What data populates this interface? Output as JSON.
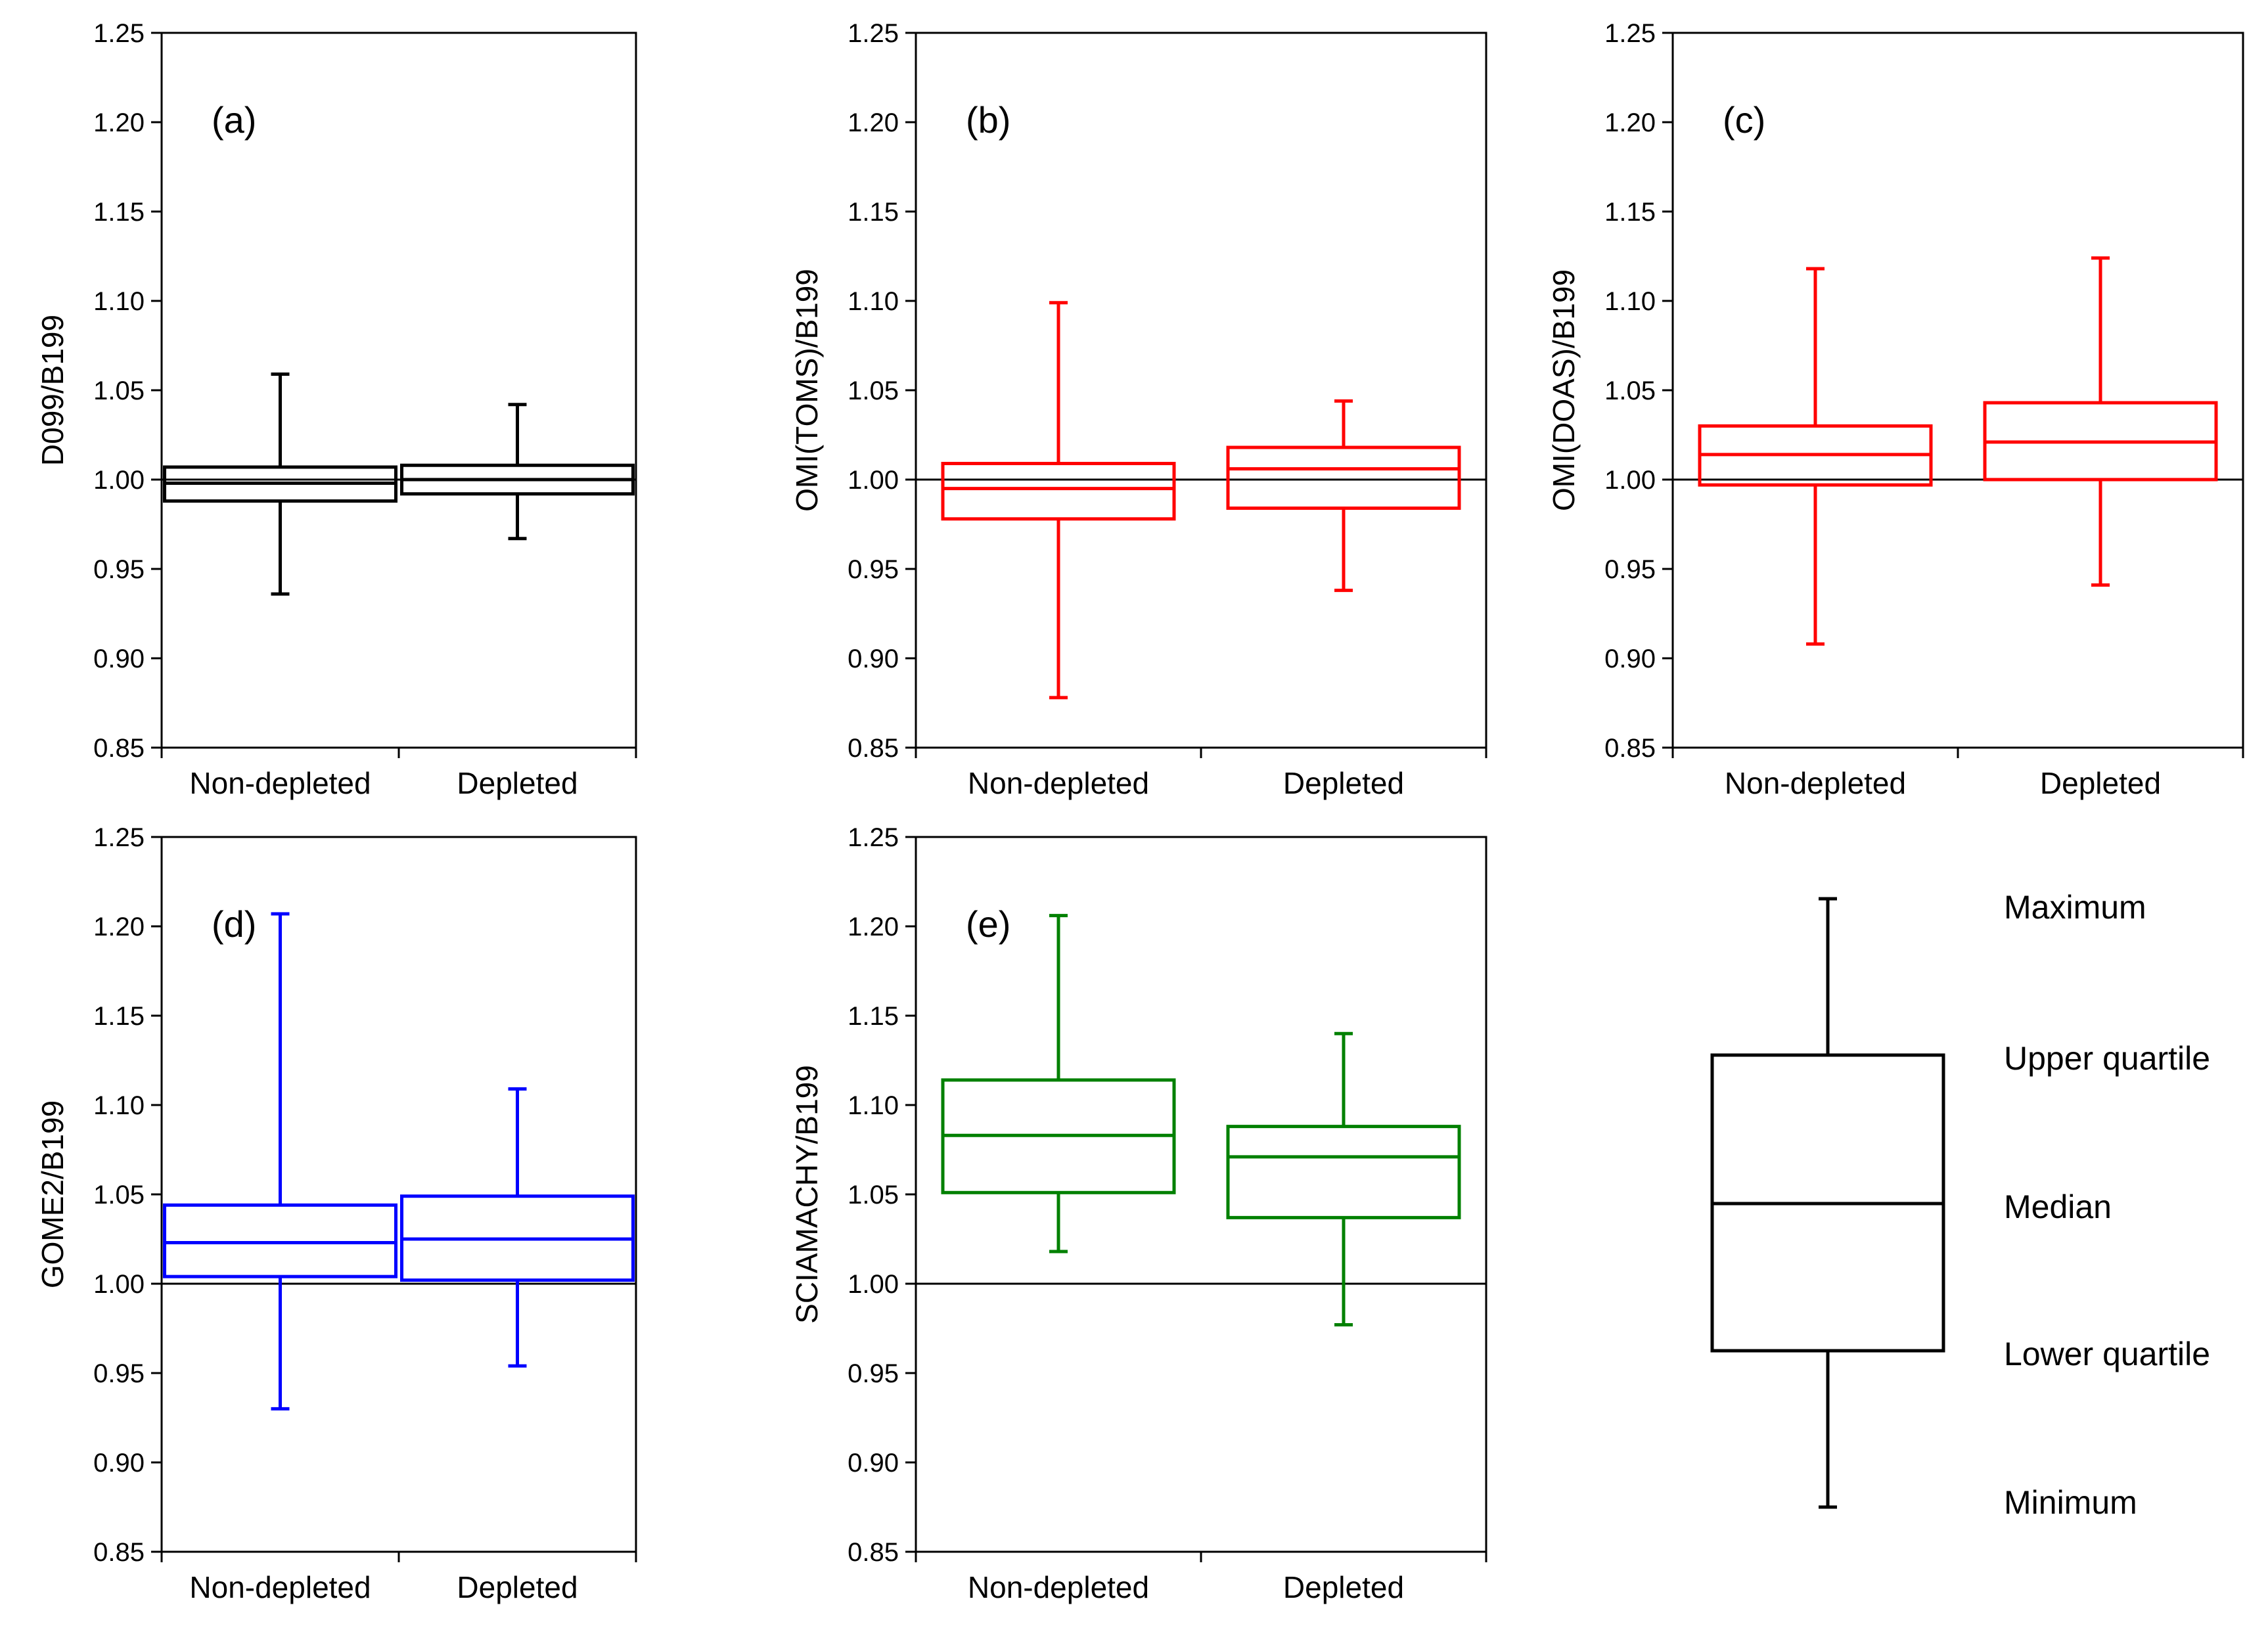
{
  "chart_data": [
    {
      "type": "box",
      "panel_label": "(a)",
      "ylabel": "D099/B199",
      "color": "#000000",
      "ylim": [
        0.85,
        1.25
      ],
      "yticks": [
        "0.85",
        "0.90",
        "0.95",
        "1.00",
        "1.05",
        "1.10",
        "1.15",
        "1.20",
        "1.25"
      ],
      "reference_line": 1.0,
      "categories": [
        "Non-depleted",
        "Depleted"
      ],
      "boxes": [
        {
          "min": 0.936,
          "q1": 0.988,
          "median": 0.998,
          "q3": 1.007,
          "max": 1.059
        },
        {
          "min": 0.967,
          "q1": 0.992,
          "median": 1.0,
          "q3": 1.008,
          "max": 1.042
        }
      ]
    },
    {
      "type": "box",
      "panel_label": "(b)",
      "ylabel": "OMI(TOMS)/B199",
      "color": "#ff0000",
      "ylim": [
        0.85,
        1.25
      ],
      "yticks": [
        "0.85",
        "0.90",
        "0.95",
        "1.00",
        "1.05",
        "1.10",
        "1.15",
        "1.20",
        "1.25"
      ],
      "reference_line": 1.0,
      "categories": [
        "Non-depleted",
        "Depleted"
      ],
      "boxes": [
        {
          "min": 0.878,
          "q1": 0.978,
          "median": 0.995,
          "q3": 1.009,
          "max": 1.099
        },
        {
          "min": 0.938,
          "q1": 0.984,
          "median": 1.006,
          "q3": 1.018,
          "max": 1.044
        }
      ]
    },
    {
      "type": "box",
      "panel_label": "(c)",
      "ylabel": "OMI(DOAS)/B199",
      "color": "#ff0000",
      "ylim": [
        0.85,
        1.25
      ],
      "yticks": [
        "0.85",
        "0.90",
        "0.95",
        "1.00",
        "1.05",
        "1.10",
        "1.15",
        "1.20",
        "1.25"
      ],
      "reference_line": 1.0,
      "categories": [
        "Non-depleted",
        "Depleted"
      ],
      "boxes": [
        {
          "min": 0.908,
          "q1": 0.997,
          "median": 1.014,
          "q3": 1.03,
          "max": 1.118
        },
        {
          "min": 0.941,
          "q1": 1.0,
          "median": 1.021,
          "q3": 1.043,
          "max": 1.124
        }
      ]
    },
    {
      "type": "box",
      "panel_label": "(d)",
      "ylabel": "GOME2/B199",
      "color": "#0000ff",
      "ylim": [
        0.85,
        1.25
      ],
      "yticks": [
        "0.85",
        "0.90",
        "0.95",
        "1.00",
        "1.05",
        "1.10",
        "1.15",
        "1.20",
        "1.25"
      ],
      "reference_line": 1.0,
      "categories": [
        "Non-depleted",
        "Depleted"
      ],
      "boxes": [
        {
          "min": 0.93,
          "q1": 1.004,
          "median": 1.023,
          "q3": 1.044,
          "max": 1.207
        },
        {
          "min": 0.954,
          "q1": 1.002,
          "median": 1.025,
          "q3": 1.049,
          "max": 1.109
        }
      ]
    },
    {
      "type": "box",
      "panel_label": "(e)",
      "ylabel": "SCIAMACHY/B199",
      "color": "#008000",
      "ylim": [
        0.85,
        1.25
      ],
      "yticks": [
        "0.85",
        "0.90",
        "0.95",
        "1.00",
        "1.05",
        "1.10",
        "1.15",
        "1.20",
        "1.25"
      ],
      "reference_line": 1.0,
      "categories": [
        "Non-depleted",
        "Depleted"
      ],
      "boxes": [
        {
          "min": 1.018,
          "q1": 1.051,
          "median": 1.083,
          "q3": 1.114,
          "max": 1.206
        },
        {
          "min": 0.977,
          "q1": 1.037,
          "median": 1.071,
          "q3": 1.088,
          "max": 1.14
        }
      ]
    }
  ],
  "legend": {
    "color": "#000000",
    "labels": {
      "max": "Maximum",
      "q3": "Upper quartile",
      "median": "Median",
      "q1": "Lower quartile",
      "min": "Minimum"
    }
  }
}
